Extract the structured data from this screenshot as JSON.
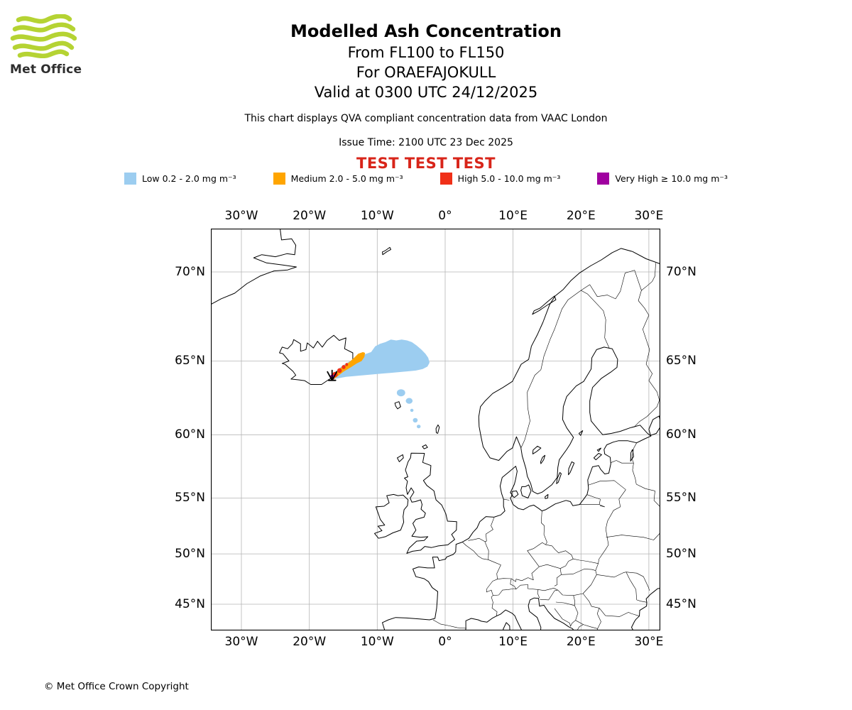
{
  "header": {
    "logo_text": "Met Office",
    "title": "Modelled Ash Concentration",
    "flight_levels": "From FL100 to FL150",
    "volcano_line": "For ORAEFAJOKULL",
    "valid_line": "Valid at 0300 UTC 24/12/2025",
    "note": "This chart displays QVA compliant concentration data from VAAC London",
    "issue_time": "Issue Time: 2100 UTC 23 Dec 2025",
    "test_banner": "TEST TEST TEST",
    "test_color": "#d8251a"
  },
  "brand": {
    "logo_green": "#b5d333"
  },
  "legend": {
    "items": [
      {
        "name": "low",
        "label": "Low 0.2 - 2.0 mg m⁻³",
        "color": "#9ccdf0"
      },
      {
        "name": "medium",
        "label": "Medium 2.0 - 5.0 mg m⁻³",
        "color": "#ffa500"
      },
      {
        "name": "high",
        "label": "High 5.0 - 10.0 mg m⁻³",
        "color": "#f03018"
      },
      {
        "name": "very-high",
        "label": "Very High ≥ 10.0 mg m⁻³",
        "color": "#a000a0"
      }
    ]
  },
  "map": {
    "lon_ticks": [
      {
        "lon": -30,
        "label": "30°W"
      },
      {
        "lon": -20,
        "label": "20°W"
      },
      {
        "lon": -10,
        "label": "10°W"
      },
      {
        "lon": 0,
        "label": "0°"
      },
      {
        "lon": 10,
        "label": "10°E"
      },
      {
        "lon": 20,
        "label": "20°E"
      },
      {
        "lon": 30,
        "label": "30°E"
      }
    ],
    "lat_ticks": [
      {
        "lat": 70,
        "label": "70°N"
      },
      {
        "lat": 65,
        "label": "65°N"
      },
      {
        "lat": 60,
        "label": "60°N"
      },
      {
        "lat": 55,
        "label": "55°N"
      },
      {
        "lat": 50,
        "label": "50°N"
      },
      {
        "lat": 45,
        "label": "45°N"
      }
    ],
    "volcano": {
      "name": "ORAEFAJOKULL",
      "lon": -16.65,
      "lat": 64.0
    },
    "ash_plume": {
      "low": {
        "polygons": [
          [
            [
              -17.0,
              63.95
            ],
            [
              -16.4,
              64.25
            ],
            [
              -15.6,
              64.55
            ],
            [
              -14.8,
              64.8
            ],
            [
              -14.0,
              65.0
            ],
            [
              -13.2,
              65.2
            ],
            [
              -12.4,
              65.35
            ],
            [
              -11.6,
              65.45
            ],
            [
              -10.9,
              65.55
            ],
            [
              -10.3,
              65.9
            ],
            [
              -9.6,
              66.05
            ],
            [
              -8.8,
              66.15
            ],
            [
              -8.0,
              66.3
            ],
            [
              -7.2,
              66.25
            ],
            [
              -6.4,
              66.3
            ],
            [
              -5.6,
              66.25
            ],
            [
              -4.9,
              66.15
            ],
            [
              -4.2,
              65.95
            ],
            [
              -3.5,
              65.7
            ],
            [
              -2.9,
              65.45
            ],
            [
              -2.5,
              65.2
            ],
            [
              -2.3,
              64.9
            ],
            [
              -2.6,
              64.65
            ],
            [
              -3.3,
              64.5
            ],
            [
              -4.3,
              64.4
            ],
            [
              -5.5,
              64.35
            ],
            [
              -6.8,
              64.3
            ],
            [
              -8.1,
              64.25
            ],
            [
              -9.4,
              64.2
            ],
            [
              -10.7,
              64.15
            ],
            [
              -12.0,
              64.1
            ],
            [
              -13.3,
              64.05
            ],
            [
              -14.6,
              64.0
            ],
            [
              -15.8,
              63.9
            ],
            [
              -16.6,
              63.85
            ]
          ]
        ],
        "patches": [
          {
            "lon": -6.5,
            "lat": 62.95,
            "rx": 0.62,
            "ry": 0.24
          },
          {
            "lon": -5.3,
            "lat": 62.4,
            "rx": 0.5,
            "ry": 0.2
          },
          {
            "lon": -4.9,
            "lat": 61.75,
            "rx": 0.24,
            "ry": 0.11
          },
          {
            "lon": -4.4,
            "lat": 61.05,
            "rx": 0.36,
            "ry": 0.16
          },
          {
            "lon": -3.9,
            "lat": 60.6,
            "rx": 0.28,
            "ry": 0.13
          }
        ]
      },
      "medium": {
        "polygons": [
          [
            [
              -16.85,
              63.95
            ],
            [
              -16.0,
              64.35
            ],
            [
              -15.1,
              64.65
            ],
            [
              -14.2,
              64.9
            ],
            [
              -13.4,
              65.2
            ],
            [
              -12.8,
              65.45
            ],
            [
              -12.1,
              65.55
            ],
            [
              -11.8,
              65.5
            ],
            [
              -11.9,
              65.25
            ],
            [
              -12.3,
              65.0
            ],
            [
              -13.0,
              64.85
            ],
            [
              -13.9,
              64.6
            ],
            [
              -14.9,
              64.35
            ],
            [
              -15.8,
              64.05
            ],
            [
              -16.5,
              63.8
            ]
          ]
        ],
        "patches": []
      },
      "high": {
        "polygons": [],
        "patches": [
          {
            "lon": -16.2,
            "lat": 64.15,
            "rx": 0.38,
            "ry": 0.17
          },
          {
            "lon": -15.55,
            "lat": 64.4,
            "rx": 0.33,
            "ry": 0.15
          },
          {
            "lon": -14.95,
            "lat": 64.62,
            "rx": 0.28,
            "ry": 0.13
          },
          {
            "lon": -14.5,
            "lat": 64.78,
            "rx": 0.2,
            "ry": 0.1
          }
        ]
      },
      "very_high": {
        "polygons": [],
        "patches": [
          {
            "lon": -16.62,
            "lat": 63.98,
            "rx": 0.34,
            "ry": 0.16
          }
        ]
      }
    }
  },
  "footer": {
    "copyright": "© Met Office Crown Copyright"
  }
}
